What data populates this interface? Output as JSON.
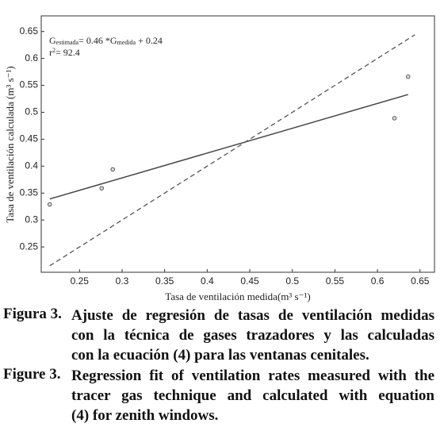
{
  "chart_data": {
    "type": "scatter",
    "x_label": "Tasa de ventilación medida(m³ s⁻¹)",
    "y_label": "Tasa de ventilación calculada (m³ s⁻¹)",
    "annotation": [
      "G",
      "estimada",
      "= 0.46 *G",
      "medida",
      " + 0.24"
    ],
    "r2": [
      "r",
      "2",
      "= 92.4"
    ],
    "series": [
      {
        "color": "#555555",
        "x": [
          0.215,
          0.276,
          0.289,
          0.62,
          0.636
        ],
        "values": [
          0.329,
          0.359,
          0.394,
          0.489,
          0.566
        ]
      }
    ],
    "lines": [
      {
        "color": "#444444",
        "dashed": false,
        "x": [
          0.215,
          0.636
        ],
        "values": [
          0.339,
          0.533
        ]
      },
      {
        "color": "#555555",
        "dashed": true,
        "x": [
          0.215,
          0.644
        ],
        "values": [
          0.215,
          0.644
        ]
      }
    ],
    "xlim": [
      0.205,
      0.667
    ],
    "ylim": [
      0.203,
      0.679
    ],
    "xticks": [
      0.25,
      0.3,
      0.35,
      0.4,
      0.45,
      0.5,
      0.55,
      0.6,
      0.65
    ],
    "yticks": [
      0.25,
      0.3,
      0.35,
      0.4,
      0.45,
      0.5,
      0.55,
      0.6,
      0.65
    ]
  },
  "captions": [
    {
      "label": "Figura 3.",
      "lines": [
        "Ajuste de regresión de tasas de ventilación medidas",
        "con la técnica de gases trazadores y las calculadas",
        "con la ecuación (4) para las ventanas cenitales."
      ]
    },
    {
      "label": "Figure 3.",
      "lines": [
        "Regression fit of ventilation rates measured with the",
        "tracer gas technique and calculated with equation",
        "(4) for zenith windows."
      ]
    }
  ]
}
